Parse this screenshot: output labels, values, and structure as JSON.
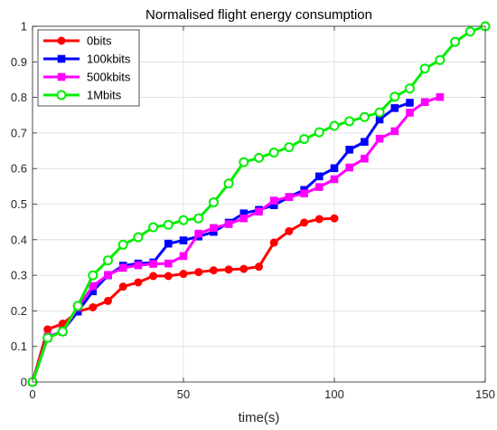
{
  "chart_data": {
    "type": "line",
    "title": "Normalised flight energy consumption",
    "xlabel": "time(s)",
    "ylabel": "",
    "xlim": [
      0,
      150
    ],
    "ylim": [
      0,
      1
    ],
    "x_ticks": [
      0,
      50,
      100,
      150
    ],
    "x_tick_labels": [
      "0",
      "50",
      "100",
      "150"
    ],
    "y_ticks": [
      0,
      0.1,
      0.2,
      0.3,
      0.4,
      0.5,
      0.6,
      0.7,
      0.8,
      0.9,
      1
    ],
    "y_tick_labels": [
      "0",
      "0.1",
      "0.2",
      "0.3",
      "0.4",
      "0.5",
      "0.6",
      "0.7",
      "0.8",
      "0.9",
      "1"
    ],
    "grid": true,
    "legend_position": "top-left",
    "series": [
      {
        "name": "0bits",
        "color": "#ff0000",
        "marker": "circle",
        "x": [
          0,
          5,
          10,
          15,
          20,
          25,
          30,
          35,
          40,
          45,
          50,
          55,
          60,
          65,
          70,
          75,
          80,
          85,
          90,
          95,
          100
        ],
        "y": [
          0,
          0.148,
          0.164,
          0.198,
          0.21,
          0.228,
          0.268,
          0.28,
          0.298,
          0.298,
          0.304,
          0.309,
          0.314,
          0.316,
          0.318,
          0.324,
          0.392,
          0.424,
          0.448,
          0.458,
          0.46
        ]
      },
      {
        "name": "100kbits",
        "color": "#0000ff",
        "marker": "square",
        "x": [
          0,
          5,
          10,
          15,
          20,
          25,
          30,
          35,
          40,
          45,
          50,
          55,
          60,
          65,
          70,
          75,
          80,
          85,
          90,
          95,
          100,
          105,
          110,
          115,
          120,
          125
        ],
        "y": [
          0,
          0.124,
          0.144,
          0.198,
          0.255,
          0.3,
          0.327,
          0.333,
          0.336,
          0.389,
          0.398,
          0.409,
          0.422,
          0.448,
          0.474,
          0.484,
          0.497,
          0.52,
          0.54,
          0.578,
          0.601,
          0.653,
          0.675,
          0.738,
          0.77,
          0.785
        ]
      },
      {
        "name": "500kbits",
        "color": "#ff00ff",
        "marker": "square",
        "x": [
          0,
          5,
          10,
          15,
          20,
          25,
          30,
          35,
          40,
          45,
          50,
          55,
          60,
          65,
          70,
          75,
          80,
          85,
          90,
          95,
          100,
          105,
          110,
          115,
          120,
          125,
          130,
          135
        ],
        "y": [
          0,
          0.128,
          0.141,
          0.21,
          0.27,
          0.301,
          0.321,
          0.328,
          0.332,
          0.333,
          0.354,
          0.417,
          0.433,
          0.444,
          0.46,
          0.479,
          0.51,
          0.52,
          0.53,
          0.548,
          0.57,
          0.603,
          0.628,
          0.684,
          0.705,
          0.757,
          0.787,
          0.801
        ]
      },
      {
        "name": "1Mbits",
        "color": "#00ee00",
        "marker": "circle-open",
        "x": [
          0,
          5,
          10,
          15,
          20,
          25,
          30,
          35,
          40,
          45,
          50,
          55,
          60,
          65,
          70,
          75,
          80,
          85,
          90,
          95,
          100,
          105,
          110,
          115,
          120,
          125,
          130,
          135,
          140,
          145,
          150
        ],
        "y": [
          0,
          0.124,
          0.142,
          0.214,
          0.3,
          0.342,
          0.386,
          0.407,
          0.435,
          0.442,
          0.455,
          0.46,
          0.505,
          0.558,
          0.618,
          0.63,
          0.645,
          0.66,
          0.683,
          0.702,
          0.72,
          0.733,
          0.745,
          0.758,
          0.802,
          0.825,
          0.881,
          0.905,
          0.956,
          0.985,
          1.0
        ]
      }
    ]
  }
}
